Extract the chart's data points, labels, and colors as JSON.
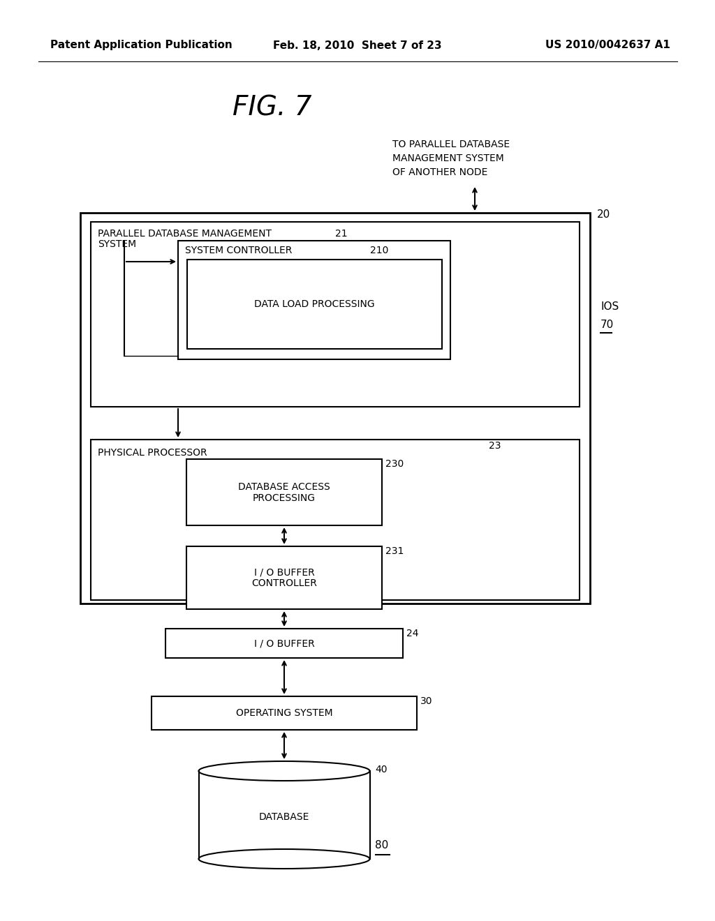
{
  "bg_color": "#ffffff",
  "header_left": "Patent Application Publication",
  "header_mid": "Feb. 18, 2010  Sheet 7 of 23",
  "header_right": "US 2010/0042637 A1",
  "fig_title": "FIG. 7",
  "parallel_note_line1": "TO PARALLEL DATABASE",
  "parallel_note_line2": "MANAGEMENT SYSTEM",
  "parallel_note_line3": "OF ANOTHER NODE",
  "node20_label": "20",
  "ios_label": "IOS",
  "ios70_label": "70",
  "outer_box_label_line1": "PARALLEL DATABASE MANAGEMENT",
  "outer_box_label_line2": "SYSTEM",
  "outer_box_num": "21",
  "system_ctrl_label": "SYSTEM CONTROLLER",
  "system_ctrl_num": "210",
  "data_load_label": "DATA LOAD PROCESSING",
  "phys_proc_label": "PHYSICAL PROCESSOR",
  "phys_proc_num": "23",
  "db_access_label_line1": "DATABASE ACCESS",
  "db_access_label_line2": "PROCESSING",
  "db_access_num": "230",
  "io_buf_ctrl_label_line1": "I / O BUFFER",
  "io_buf_ctrl_label_line2": "CONTROLLER",
  "io_buf_ctrl_num": "231",
  "io_buf_num": "24",
  "io_buf_label": "I / O BUFFER",
  "os_num": "30",
  "os_label": "OPERATING SYSTEM",
  "db_num": "40",
  "db_label": "DATABASE",
  "db80_label": "80"
}
